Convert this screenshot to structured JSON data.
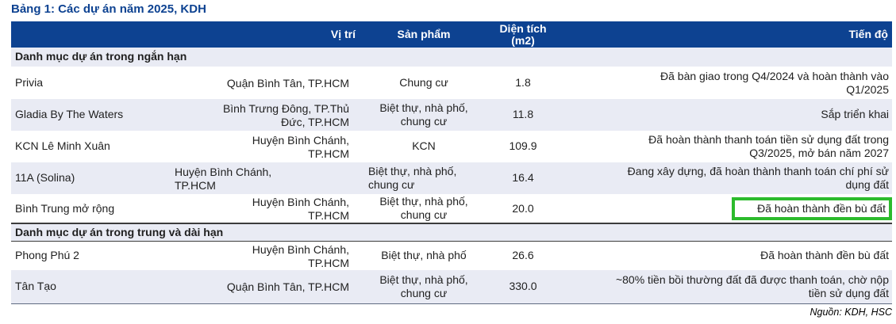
{
  "title": "Bảng 1: Các dự án năm 2025, KDH",
  "columns": {
    "location": "Vị trí",
    "product": "Sản phẩm",
    "area_line1": "Diện tích",
    "area_line2": "(m2)",
    "progress": "Tiến độ"
  },
  "sections": [
    {
      "label": "Danh mục dự án trong ngắn hạn",
      "rows": [
        {
          "name": "Privia",
          "location": "Quận Bình Tân, TP.HCM",
          "product": "Chung cư",
          "area": "1.8",
          "progress": "Đã bàn giao trong Q4/2024 và hoàn thành vào Q1/2025"
        },
        {
          "name": "Gladia By The Waters",
          "location": "Bình Trưng Đông, TP.Thủ Đức, TP.HCM",
          "product": "Biệt thự, nhà phố, chung cư",
          "area": "11.8",
          "progress": "Sắp triển khai"
        },
        {
          "name": "KCN Lê Minh Xuân",
          "location": "Huyện Bình Chánh, TP.HCM",
          "product": "KCN",
          "area": "109.9",
          "progress": "Đã hoàn thành thanh toán tiền sử dụng đất trong Q3/2025, mở bán năm 2027"
        },
        {
          "name": "11A (Solina)",
          "location": "Huyện Bình Chánh, TP.HCM",
          "product": "Biệt thự, nhà phố, chung cư",
          "area": "16.4",
          "progress": "Đang xây dựng, đã hoàn thành thanh toán chí phí sử dụng đất"
        },
        {
          "name": "Bình Trung mở rộng",
          "location": "Huyện Bình Chánh, TP.HCM",
          "product": "Biệt thự, nhà phố, chung cư",
          "area": "20.0",
          "progress": "Đã hoàn thành đền bù đất",
          "highlighted": true
        }
      ]
    },
    {
      "label": "Danh mục dự án trong trung và dài hạn",
      "rows": [
        {
          "name": "Phong Phú 2",
          "location": "Huyện Bình Chánh, TP.HCM",
          "product": "Biệt thự, nhà phố",
          "area": "26.6",
          "progress": "Đã hoàn thành đền bù đất"
        },
        {
          "name": "Tân Tạo",
          "location": "Quận Bình Tân, TP.HCM",
          "product": "Biệt thự, nhà phố, chung cư",
          "area": "330.0",
          "progress": "~80% tiền bồi thường đất đã được thanh toán, chờ nộp tiền sử dụng đất"
        }
      ]
    }
  ],
  "source": "Nguồn: KDH, HSC",
  "colors": {
    "header_bg": "#0d4291",
    "header_text": "#ffffff",
    "stripe_bg": "#e9ebf4",
    "title_color": "#0d4291",
    "section_border": "#3c3c3c",
    "highlight_border": "#2cbb2c"
  }
}
